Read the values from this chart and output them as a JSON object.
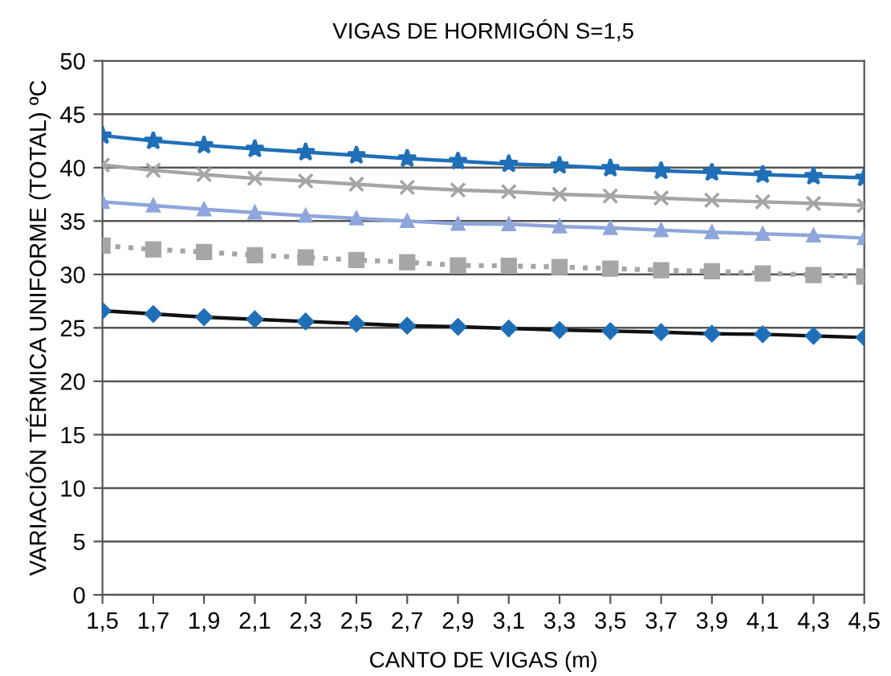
{
  "chart_data": {
    "type": "line",
    "title": "VIGAS DE HORMIGÓN S=1,5",
    "xlabel": "CANTO DE VIGAS (m)",
    "ylabel": "VARIACIÓN TÉRMICA UNIFORME (TOTAL) ºC",
    "categories": [
      "1,5",
      "1,7",
      "1,9",
      "2,1",
      "2,3",
      "2,5",
      "2,7",
      "2,9",
      "3,1",
      "3,3",
      "3,5",
      "3,7",
      "3,9",
      "4,1",
      "4,3",
      "4,5"
    ],
    "ylim": [
      0,
      50
    ],
    "yticks": [
      0,
      5,
      10,
      15,
      20,
      25,
      30,
      35,
      40,
      45,
      50
    ],
    "grid": "y",
    "series": [
      {
        "color": "#1f6fb8",
        "marker": "star",
        "line_style": "solid",
        "values": [
          43.0,
          42.5,
          42.1,
          41.75,
          41.45,
          41.15,
          40.85,
          40.6,
          40.35,
          40.2,
          39.95,
          39.7,
          39.55,
          39.35,
          39.2,
          39.05
        ]
      },
      {
        "color": "#a5a5a5",
        "marker": "cross",
        "line_style": "solid",
        "values": [
          40.25,
          39.75,
          39.35,
          39.0,
          38.75,
          38.45,
          38.15,
          37.9,
          37.75,
          37.5,
          37.35,
          37.15,
          36.95,
          36.8,
          36.65,
          36.45
        ]
      },
      {
        "color": "#8ea6dc",
        "marker": "triangle",
        "line_style": "solid",
        "values": [
          36.8,
          36.45,
          36.1,
          35.8,
          35.5,
          35.25,
          35.0,
          34.75,
          34.7,
          34.5,
          34.35,
          34.15,
          33.95,
          33.8,
          33.65,
          33.4
        ]
      },
      {
        "color": "#a6a6a6",
        "marker": "square",
        "line_style": "dotted",
        "values": [
          32.7,
          32.35,
          32.1,
          31.8,
          31.6,
          31.35,
          31.15,
          30.85,
          30.8,
          30.7,
          30.55,
          30.4,
          30.3,
          30.1,
          29.95,
          29.8
        ]
      },
      {
        "color": "#111111",
        "colors": [
          "#1f6fb8",
          "#1f6fb8",
          "#1f6fb8",
          "#1f6fb8",
          "#1f6fb8",
          "#1f6fb8",
          "#1f6fb8",
          "#1f6fb8",
          "#1f6fb8",
          "#1f6fb8",
          "#1f6fb8",
          "#1f6fb8",
          "#1f6fb8",
          "#1f6fb8",
          "#1f6fb8",
          "#1f6fb8"
        ],
        "marker": "diamond",
        "line_style": "solid",
        "values": [
          26.6,
          26.3,
          26.0,
          25.8,
          25.6,
          25.4,
          25.2,
          25.1,
          24.95,
          24.8,
          24.7,
          24.6,
          24.45,
          24.4,
          24.25,
          24.1
        ]
      }
    ]
  }
}
